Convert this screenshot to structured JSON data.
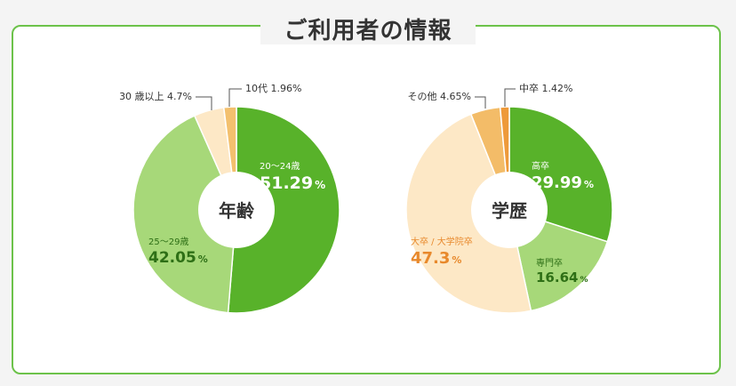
{
  "title": "ご利用者の情報",
  "chart_data": [
    {
      "type": "pie",
      "center_label": "年齢",
      "slices": [
        {
          "label": "20～24歳",
          "value": 51.29,
          "value_text": "51.29",
          "color": "#58b22a",
          "text_color": "#ffffff",
          "inside": true
        },
        {
          "label": "25～29歳",
          "value": 42.05,
          "value_text": "42.05",
          "color": "#a7d879",
          "text_color": "#2e6f16",
          "inside": true
        },
        {
          "label": "30 歳以上 4.7%",
          "value": 4.7,
          "value_text": "4.7",
          "color": "#fde8c6",
          "inside": false
        },
        {
          "label": "10代 1.96%",
          "value": 1.96,
          "value_text": "1.96",
          "color": "#f3c06e",
          "inside": false
        }
      ]
    },
    {
      "type": "pie",
      "center_label": "学歴",
      "slices": [
        {
          "label": "高卒",
          "value": 29.99,
          "value_text": "29.99",
          "color": "#58b22a",
          "text_color": "#ffffff",
          "inside": true
        },
        {
          "label": "専門卒",
          "value": 16.64,
          "value_text": "16.64",
          "color": "#a7d879",
          "text_color": "#2e6f16",
          "inside": true
        },
        {
          "label": "大卒 / 大学院卒",
          "value": 47.3,
          "value_text": "47.3",
          "color": "#fde8c6",
          "text_color": "#e8892c",
          "inside": true
        },
        {
          "label": "その他 4.65%",
          "value": 4.65,
          "value_text": "4.65",
          "color": "#f3bc68",
          "inside": false
        },
        {
          "label": "中卒 1.42%",
          "value": 1.42,
          "value_text": "1.42",
          "color": "#ee9a3a",
          "inside": false
        }
      ]
    }
  ]
}
